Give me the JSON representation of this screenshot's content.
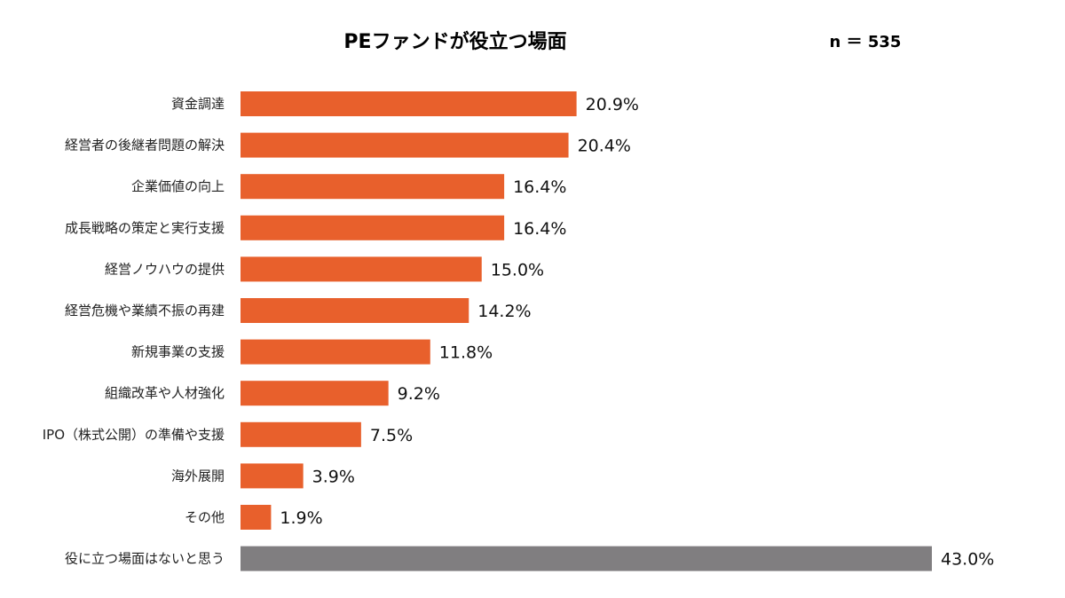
{
  "chart_data": {
    "type": "bar",
    "orientation": "horizontal",
    "title": "PEファンドが役立つ場面",
    "sample_size": "n ＝ 535",
    "categories": [
      "資金調達",
      "経営者の後継者問題の解決",
      "企業価値の向上",
      "成長戦略の策定と実行支援",
      "経営ノウハウの提供",
      "経営危機や業績不振の再建",
      "新規事業の支援",
      "組織改革や人材強化",
      "IPO（株式公開）の準備や支援",
      "海外展開",
      "その他",
      "役に立つ場面はないと思う"
    ],
    "values": [
      20.9,
      20.4,
      16.4,
      16.4,
      15.0,
      14.2,
      11.8,
      9.2,
      7.5,
      3.9,
      1.9,
      43.0
    ],
    "value_labels": [
      "20.9%",
      "20.4%",
      "16.4%",
      "16.4%",
      "15.0%",
      "14.2%",
      "11.8%",
      "9.2%",
      "7.5%",
      "3.9%",
      "1.9%",
      "43.0%"
    ],
    "bar_colors": [
      "#E8602C",
      "#E8602C",
      "#E8602C",
      "#E8602C",
      "#E8602C",
      "#E8602C",
      "#E8602C",
      "#E8602C",
      "#E8602C",
      "#E8602C",
      "#E8602C",
      "#807E80"
    ],
    "xlim": [
      0,
      43
    ],
    "unit": "%",
    "xlabel": "",
    "ylabel": "",
    "grid": false
  }
}
